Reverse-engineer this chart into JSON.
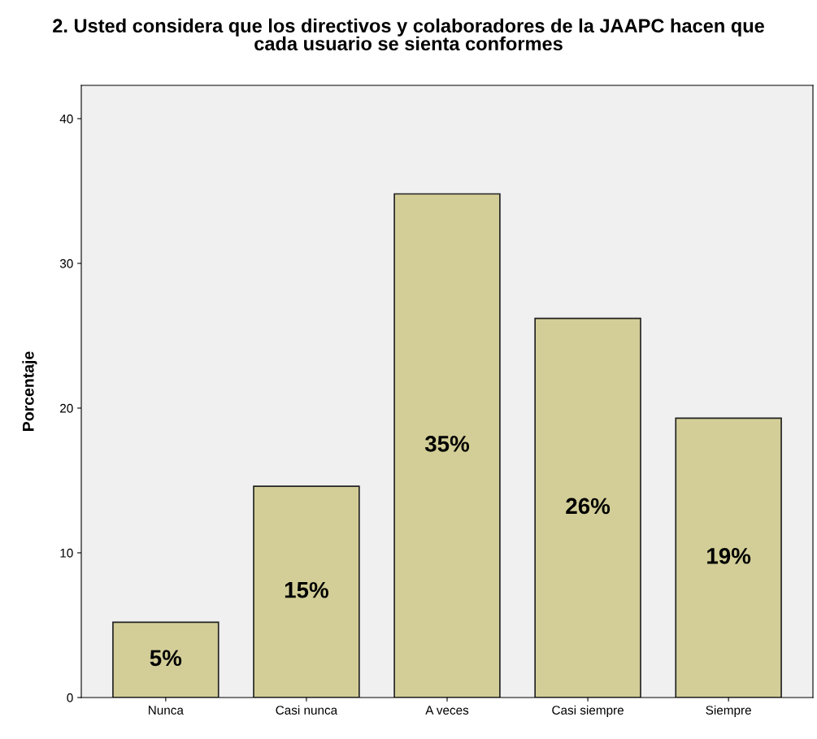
{
  "chart_data": {
    "type": "bar",
    "title": "2. Usted considera que los directivos y colaboradores de la JAAPC hacen que\ncada usuario se sienta conformes",
    "ylabel": "Porcentaje",
    "categories": [
      "Nunca",
      "Casi nunca",
      "A veces",
      "Casi siempre",
      "Siempre"
    ],
    "values": [
      5.2,
      14.6,
      34.8,
      26.2,
      19.3
    ],
    "value_labels": [
      "5%",
      "15%",
      "35%",
      "26%",
      "19%"
    ],
    "color": "#d3ce97",
    "ylim": [
      0,
      42.3
    ],
    "yticks": [
      0,
      10,
      20,
      30,
      40
    ],
    "grid": false,
    "legend": false
  }
}
